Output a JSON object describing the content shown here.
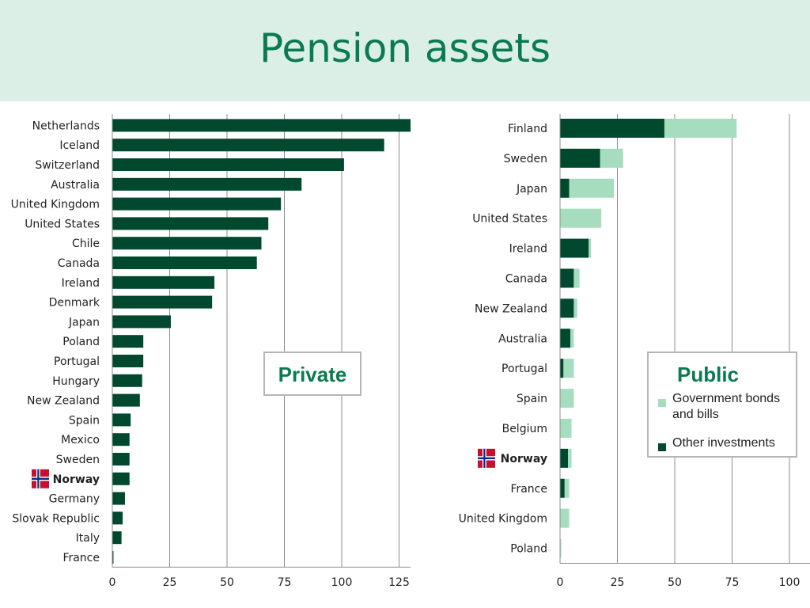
{
  "title": "Pension assets",
  "colors": {
    "dark": "#00482e",
    "light": "#a6ddbf",
    "grid": "#8c8c8c",
    "flag_red": "#c8102e",
    "flag_blue": "#003087"
  },
  "private_box": {
    "title": "Private"
  },
  "public_box": {
    "title": "Public",
    "legend": [
      {
        "label": "Government bonds and bills",
        "color": "#a6ddbf"
      },
      {
        "label": "Other investments",
        "color": "#00482e"
      }
    ]
  },
  "chart_data": [
    {
      "type": "bar",
      "orientation": "horizontal",
      "categories": [
        "Netherlands",
        "Iceland",
        "Switzerland",
        "Australia",
        "United Kingdom",
        "United States",
        "Chile",
        "Canada",
        "Ireland",
        "Denmark",
        "Japan",
        "Poland",
        "Portugal",
        "Hungary",
        "New Zealand",
        "Spain",
        "Mexico",
        "Sweden",
        "Norway",
        "Germany",
        "Slovak Republic",
        "Italy",
        "France"
      ],
      "highlight": "Norway",
      "values": [
        130,
        118.5,
        101,
        82.5,
        73.5,
        68,
        65,
        63,
        44.5,
        43.5,
        25.5,
        13.5,
        13.5,
        13,
        12,
        8,
        7.5,
        7.5,
        7.5,
        5.5,
        4.5,
        4,
        0.5
      ],
      "xlim": [
        0,
        130
      ],
      "xticks": [
        0,
        25,
        50,
        75,
        100,
        125
      ],
      "grid": true
    },
    {
      "type": "bar",
      "orientation": "horizontal",
      "stacked": true,
      "categories": [
        "Finland",
        "Sweden",
        "Japan",
        "United States",
        "Ireland",
        "Canada",
        "New Zealand",
        "Australia",
        "Portugal",
        "Spain",
        "Belgium",
        "Norway",
        "France",
        "United Kingdom",
        "Poland"
      ],
      "highlight": "Norway",
      "series": [
        {
          "name": "Other investments",
          "values": [
            45.5,
            17.5,
            4,
            0,
            12.5,
            6,
            6,
            4.5,
            1.5,
            0,
            0,
            3.5,
            2,
            0,
            0
          ]
        },
        {
          "name": "Government bonds and bills",
          "values": [
            31.5,
            10,
            19.5,
            18,
            1,
            2.5,
            1.5,
            1.5,
            4.5,
            6,
            5,
            1.5,
            2,
            4,
            0.5
          ]
        }
      ],
      "xlim": [
        0,
        110
      ],
      "xticks": [
        0,
        25,
        50,
        75,
        100
      ],
      "grid": true
    }
  ]
}
